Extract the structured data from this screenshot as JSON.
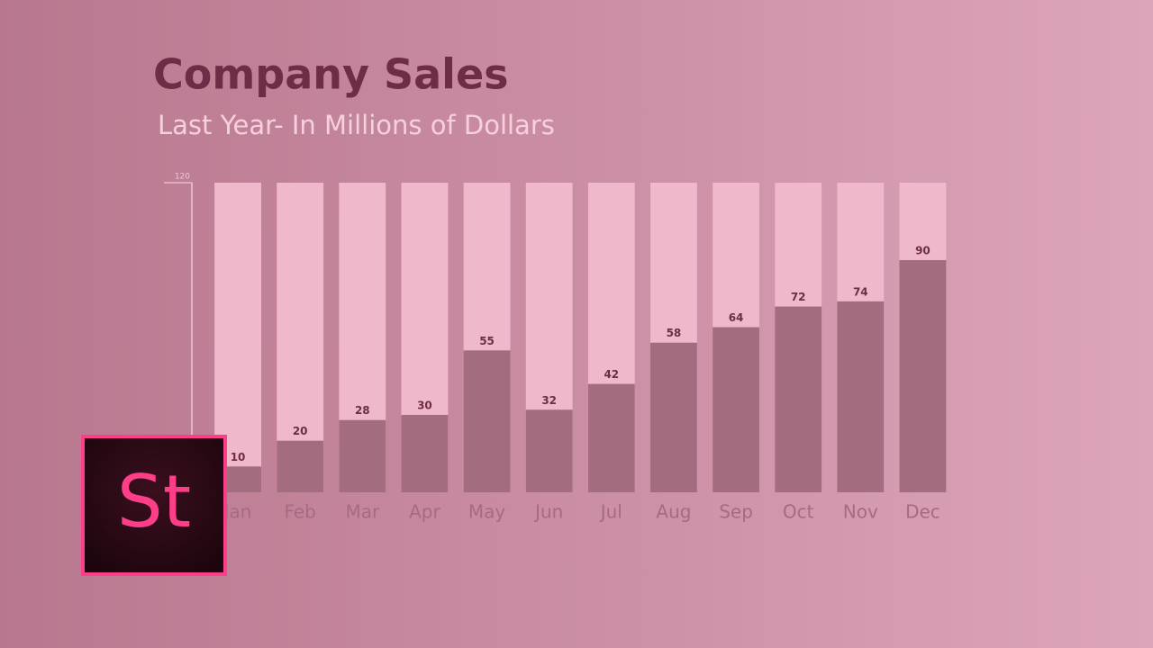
{
  "chart_data": {
    "type": "bar",
    "title": "Company Sales",
    "subtitle": "Last Year- In Millions of Dollars",
    "categories": [
      "Jan",
      "Feb",
      "Mar",
      "Apr",
      "May",
      "Jun",
      "Jul",
      "Aug",
      "Sep",
      "Oct",
      "Nov",
      "Dec"
    ],
    "values": [
      10,
      20,
      28,
      30,
      55,
      32,
      42,
      58,
      64,
      72,
      74,
      90
    ],
    "color": "#a46d7f",
    "ylim": [
      0,
      120
    ],
    "yticks": [
      120
    ],
    "grid": false
  },
  "logo": {
    "text": "St"
  }
}
